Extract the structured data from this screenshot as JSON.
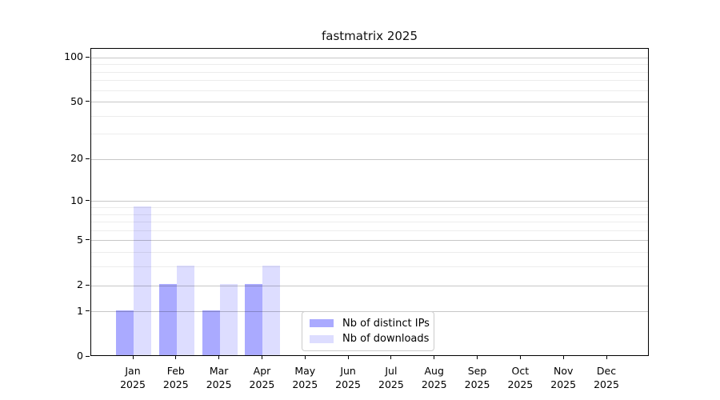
{
  "title": "fastmatrix 2025",
  "chart_data": {
    "type": "bar",
    "title": "fastmatrix 2025",
    "categories": [
      "Jan",
      "Feb",
      "Mar",
      "Apr",
      "May",
      "Jun",
      "Jul",
      "Aug",
      "Sep",
      "Oct",
      "Nov",
      "Dec"
    ],
    "x_year_label": "2025",
    "series": [
      {
        "name": "Nb of distinct IPs",
        "color": "#aaaaff",
        "values": [
          1,
          2,
          1,
          2,
          0,
          0,
          0,
          0,
          0,
          0,
          0,
          0
        ]
      },
      {
        "name": "Nb of downloads",
        "color": "#ddddff",
        "values": [
          9,
          3,
          2,
          3,
          0,
          0,
          0,
          0,
          0,
          0,
          0,
          0
        ]
      }
    ],
    "yscale": "log1p",
    "ylim": [
      0,
      114
    ],
    "y_ticks": [
      0,
      1,
      2,
      5,
      10,
      20,
      50,
      100
    ],
    "y_minor_gridlines": [
      3,
      4,
      6,
      7,
      8,
      9,
      30,
      40,
      60,
      70,
      80,
      90
    ],
    "grid": "horizontal",
    "legend_position": "lower-center",
    "colors": {
      "axis": "#000000",
      "major_grid": "#c9c9c9",
      "minor_grid": "#ececec",
      "background": "#ffffff"
    }
  }
}
